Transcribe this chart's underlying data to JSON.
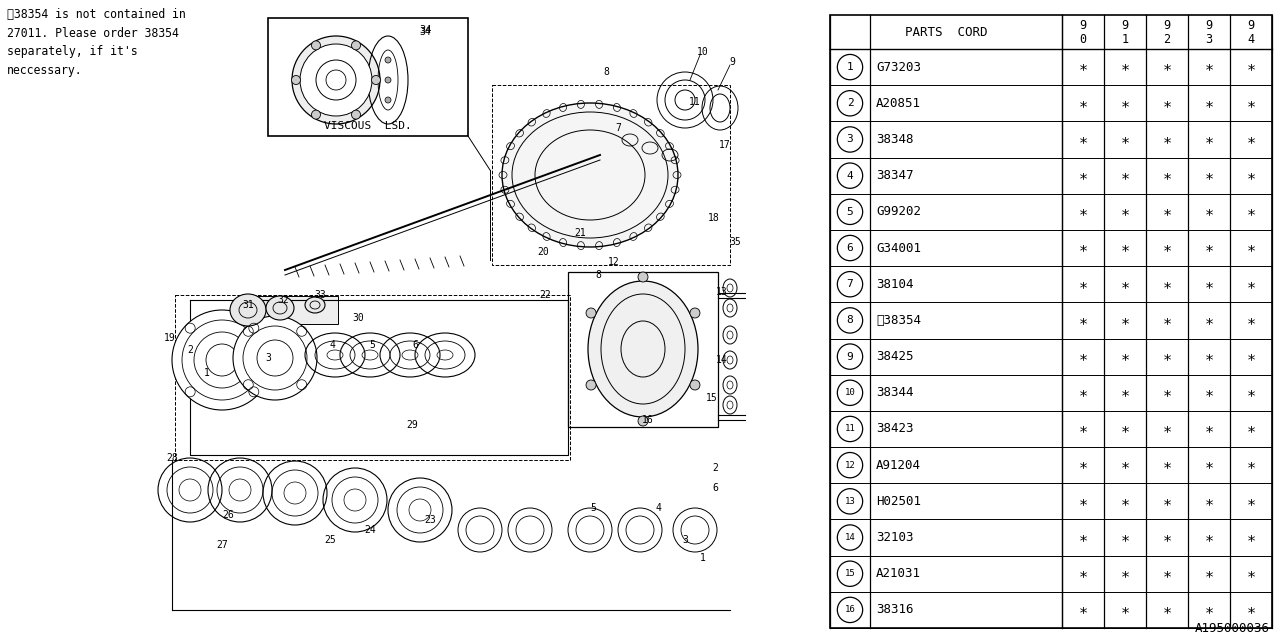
{
  "bg_color": "#ffffff",
  "note_text": "※38354 is not contained in\n27011. Please order 38354\nseparately, if it's\nneccessary.",
  "viscous_label": "VISCOUS  LSD.",
  "ref_code": "A195000036",
  "table": {
    "rows": [
      {
        "num": "1",
        "code": "G73203"
      },
      {
        "num": "2",
        "code": "A20851"
      },
      {
        "num": "3",
        "code": "38348"
      },
      {
        "num": "4",
        "code": "38347"
      },
      {
        "num": "5",
        "code": "G99202"
      },
      {
        "num": "6",
        "code": "G34001"
      },
      {
        "num": "7",
        "code": "38104"
      },
      {
        "num": "8",
        "code": "※38354"
      },
      {
        "num": "9",
        "code": "38425"
      },
      {
        "num": "10",
        "code": "38344"
      },
      {
        "num": "11",
        "code": "38423"
      },
      {
        "num": "12",
        "code": "A91204"
      },
      {
        "num": "13",
        "code": "H02501"
      },
      {
        "num": "14",
        "code": "32103"
      },
      {
        "num": "15",
        "code": "A21031"
      },
      {
        "num": "16",
        "code": "38316"
      }
    ]
  }
}
